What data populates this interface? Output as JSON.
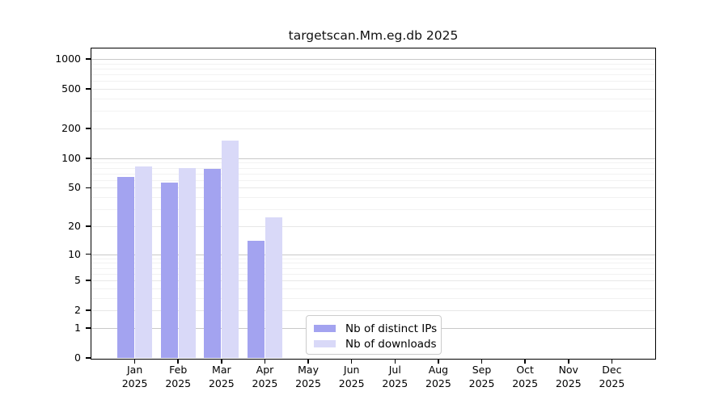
{
  "chart_data": {
    "type": "bar",
    "title": "targetscan.Mm.eg.db 2025",
    "categories": [
      "Jan 2025",
      "Feb 2025",
      "Mar 2025",
      "Apr 2025",
      "May 2025",
      "Jun 2025",
      "Jul 2025",
      "Aug 2025",
      "Sep 2025",
      "Oct 2025",
      "Nov 2025",
      "Dec 2025"
    ],
    "series": [
      {
        "name": "Nb of distinct IPs",
        "color": "#a3a3f0",
        "values": [
          65,
          57,
          78,
          14,
          null,
          null,
          null,
          null,
          null,
          null,
          null,
          null
        ]
      },
      {
        "name": "Nb of downloads",
        "color": "#d9d9f8",
        "values": [
          82,
          80,
          150,
          25,
          null,
          null,
          null,
          null,
          null,
          null,
          null,
          null
        ]
      }
    ],
    "y_scale": "log10(value+1)",
    "y_ticks": [
      0,
      1,
      2,
      5,
      10,
      20,
      50,
      100,
      200,
      500,
      1000
    ],
    "ylim": [
      0,
      1250
    ],
    "grid": true,
    "legend_position": "inside-bottom-center"
  }
}
